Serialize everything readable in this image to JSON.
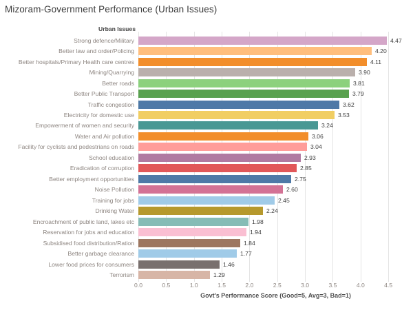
{
  "title": "Mizoram-Government Performance (Urban Issues)",
  "chart_data": {
    "type": "bar",
    "orientation": "horizontal",
    "column_header": "Urban Issues",
    "xlabel": "Govt's Performance Score (Good=5, Avg=3, Bad=1)",
    "xlim": [
      0,
      4.5
    ],
    "x_ticks": [
      "0.0",
      "0.5",
      "1.0",
      "1.5",
      "2.0",
      "2.5",
      "3.0",
      "3.5",
      "4.0",
      "4.5"
    ],
    "grid": true,
    "legend": "none",
    "categories": [
      "Strong defence/Military",
      "Better law and order/Policing",
      "Better hospitals/Primary Health care centres",
      "Mining/Quarrying",
      "Better roads",
      "Better Public Transport",
      "Traffic congestion",
      "Electricity for domestic use",
      "Empowerment of women and security",
      "Water and Air pollution",
      "Facility for cyclists and pedestrians on roads",
      "School education",
      "Eradication of corruption",
      "Better employment opportunities",
      "Noise Pollution",
      "Training for jobs",
      "Drinking Water",
      "Encroachment of public land, lakes etc",
      "Reservation for jobs and education",
      "Subsidised food distribution/Ration",
      "Better garbage clearance",
      "Lower food prices for consumers",
      "Terrorism"
    ],
    "values": [
      4.47,
      4.2,
      4.11,
      3.9,
      3.81,
      3.79,
      3.62,
      3.53,
      3.24,
      3.06,
      3.04,
      2.93,
      2.85,
      2.75,
      2.6,
      2.45,
      2.24,
      1.98,
      1.94,
      1.84,
      1.77,
      1.46,
      1.29
    ],
    "value_labels": [
      "4.47",
      "4.20",
      "4.11",
      "3.90",
      "3.81",
      "3.79",
      "3.62",
      "3.53",
      "3.24",
      "3.06",
      "3.04",
      "2.93",
      "2.85",
      "2.75",
      "2.60",
      "2.45",
      "2.24",
      "1.98",
      "1.94",
      "1.84",
      "1.77",
      "1.46",
      "1.29"
    ],
    "bar_colors": [
      "#d4a6c8",
      "#ffbe7d",
      "#f28e2b",
      "#bab0ac",
      "#8cd17d",
      "#59a14f",
      "#4e79a7",
      "#f1ce63",
      "#499894",
      "#f28e2b",
      "#ff9d9a",
      "#b07aa1",
      "#e15759",
      "#4e79a7",
      "#d37295",
      "#a0cbe8",
      "#b6992d",
      "#86bcb6",
      "#fabfd2",
      "#9d7660",
      "#a0cbe8",
      "#79706e",
      "#d7b5a6"
    ]
  },
  "colors": {
    "background": "#ffffff",
    "gridline": "#e4e4e4",
    "category_label": "#8d8580",
    "value_label": "#3f3f3f",
    "title": "#3b3b3b"
  }
}
